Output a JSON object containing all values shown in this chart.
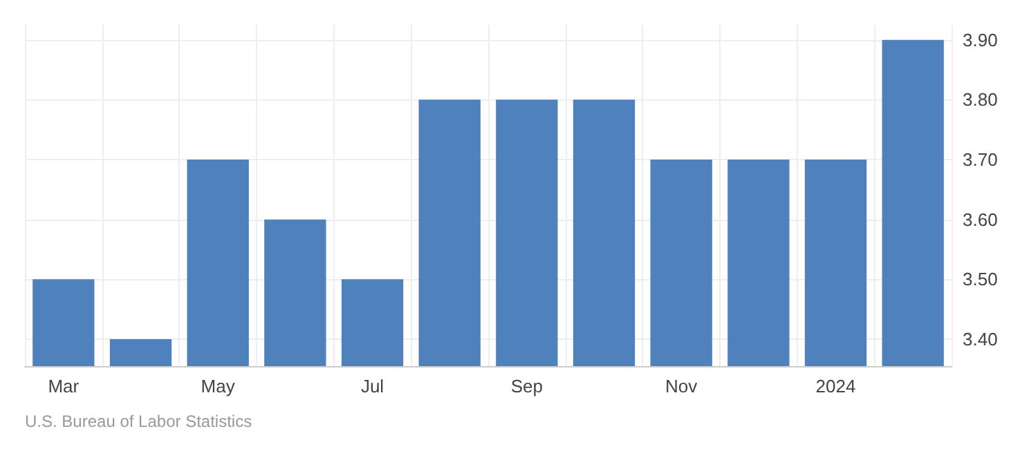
{
  "chart_data": {
    "type": "bar",
    "categories": [
      "Mar",
      null,
      "May",
      null,
      "Jul",
      null,
      "Sep",
      null,
      "Nov",
      null,
      "2024",
      null
    ],
    "values": [
      3.5,
      3.4,
      3.7,
      3.6,
      3.5,
      3.8,
      3.8,
      3.8,
      3.7,
      3.7,
      3.7,
      3.9
    ],
    "color": "#4f81bd",
    "ylim": [
      3.355,
      3.925
    ],
    "yticks": [
      {
        "value": 3.4,
        "label": "3.40"
      },
      {
        "value": 3.5,
        "label": "3.50"
      },
      {
        "value": 3.6,
        "label": "3.60"
      },
      {
        "value": 3.7,
        "label": "3.70"
      },
      {
        "value": 3.8,
        "label": "3.80"
      },
      {
        "value": 3.9,
        "label": "3.90"
      }
    ],
    "grid": true,
    "annotations": [
      "U.S. Bureau of Labor Statistics"
    ]
  }
}
